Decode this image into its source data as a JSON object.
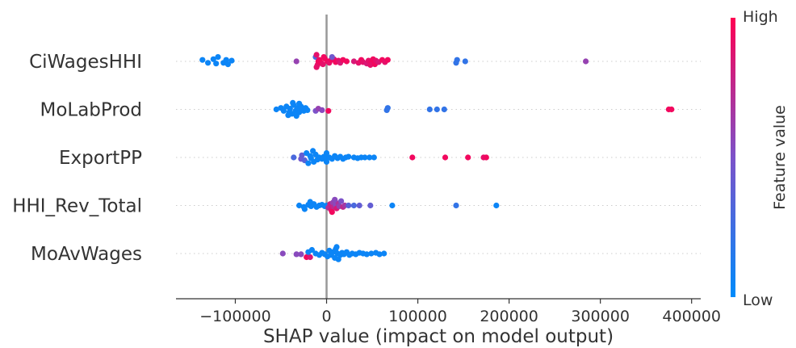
{
  "chart_data": {
    "type": "scatter",
    "subtype": "shap-beeswarm",
    "title": "",
    "xlabel": "SHAP value (impact on model output)",
    "ylabel": "",
    "xlim": [
      -165000,
      410000
    ],
    "xticks": [
      -100000,
      0,
      100000,
      200000,
      300000,
      400000
    ],
    "xtick_labels": [
      "−100000",
      "0",
      "100000",
      "200000",
      "300000",
      "400000"
    ],
    "zero_line": 0,
    "grid": false,
    "colorbar": {
      "label": "Feature value",
      "high_label": "High",
      "low_label": "Low",
      "low_color": "#008bfb",
      "high_color": "#ff0052"
    },
    "features": [
      {
        "name": "CiWagesHHI",
        "points": [
          {
            "x": -136000,
            "o": -0.1,
            "c": 0.05
          },
          {
            "x": -130000,
            "o": 0.1,
            "c": 0.05
          },
          {
            "x": -124000,
            "o": -0.15,
            "c": 0.05
          },
          {
            "x": -121000,
            "o": 0.15,
            "c": 0.05
          },
          {
            "x": -119000,
            "o": -0.3,
            "c": 0.05
          },
          {
            "x": -113000,
            "o": 0.1,
            "c": 0.05
          },
          {
            "x": -110000,
            "o": -0.1,
            "c": 0.05
          },
          {
            "x": -108000,
            "o": 0.2,
            "c": 0.05
          },
          {
            "x": -104000,
            "o": -0.05,
            "c": 0.05
          },
          {
            "x": -33000,
            "o": 0.0,
            "c": 0.6
          },
          {
            "x": -12000,
            "o": -0.3,
            "c": 0.3
          },
          {
            "x": -10000,
            "o": 0.25,
            "c": 0.9
          },
          {
            "x": -8000,
            "o": -0.1,
            "c": 0.95
          },
          {
            "x": -6000,
            "o": 0.1,
            "c": 0.95
          },
          {
            "x": -9000,
            "o": 0.0,
            "c": 0.95
          },
          {
            "x": -4000,
            "o": 0.2,
            "c": 0.9
          },
          {
            "x": -2000,
            "o": -0.2,
            "c": 0.95
          },
          {
            "x": -3000,
            "o": -0.3,
            "c": 0.95
          },
          {
            "x": -11000,
            "o": 0.4,
            "c": 0.9
          },
          {
            "x": -11000,
            "o": -0.45,
            "c": 0.9
          },
          {
            "x": 1000,
            "o": 0.0,
            "c": 0.95
          },
          {
            "x": 3000,
            "o": 0.1,
            "c": 0.9
          },
          {
            "x": 5000,
            "o": -0.1,
            "c": 0.95
          },
          {
            "x": 8000,
            "o": -0.15,
            "c": 0.9
          },
          {
            "x": 10000,
            "o": 0.05,
            "c": 0.95
          },
          {
            "x": 13000,
            "o": -0.05,
            "c": 0.9
          },
          {
            "x": 15000,
            "o": 0.1,
            "c": 0.85
          },
          {
            "x": 18000,
            "o": -0.1,
            "c": 0.95
          },
          {
            "x": 22000,
            "o": 0.0,
            "c": 0.95
          },
          {
            "x": 6000,
            "o": -0.3,
            "c": 0.45
          },
          {
            "x": 30000,
            "o": 0.0,
            "c": 0.85
          },
          {
            "x": 35000,
            "o": 0.1,
            "c": 0.9
          },
          {
            "x": 38000,
            "o": -0.1,
            "c": 0.95
          },
          {
            "x": 40000,
            "o": 0.05,
            "c": 0.9
          },
          {
            "x": 44000,
            "o": 0.15,
            "c": 0.85
          },
          {
            "x": 46000,
            "o": -0.05,
            "c": 0.9
          },
          {
            "x": 49000,
            "o": 0.1,
            "c": 0.95
          },
          {
            "x": 51000,
            "o": -0.15,
            "c": 0.95
          },
          {
            "x": 48000,
            "o": 0.25,
            "c": 0.9
          },
          {
            "x": 53000,
            "o": 0.2,
            "c": 0.95
          },
          {
            "x": 54000,
            "o": -0.05,
            "c": 0.9
          },
          {
            "x": 57000,
            "o": 0.05,
            "c": 0.85
          },
          {
            "x": 61000,
            "o": -0.1,
            "c": 0.95
          },
          {
            "x": 64000,
            "o": 0.05,
            "c": 0.9
          },
          {
            "x": 67000,
            "o": -0.1,
            "c": 0.95
          },
          {
            "x": 142000,
            "o": 0.1,
            "c": 0.2
          },
          {
            "x": 143000,
            "o": -0.1,
            "c": 0.2
          },
          {
            "x": 152000,
            "o": 0.0,
            "c": 0.2
          },
          {
            "x": 284000,
            "o": 0.0,
            "c": 0.6
          }
        ]
      },
      {
        "name": "MoLabProd",
        "points": [
          {
            "x": -55000,
            "o": 0.0,
            "c": 0.05
          },
          {
            "x": -50000,
            "o": -0.1,
            "c": 0.05
          },
          {
            "x": -47000,
            "o": 0.1,
            "c": 0.05
          },
          {
            "x": -44000,
            "o": -0.2,
            "c": 0.05
          },
          {
            "x": -41000,
            "o": 0.2,
            "c": 0.05
          },
          {
            "x": -40000,
            "o": -0.05,
            "c": 0.05
          },
          {
            "x": -38000,
            "o": 0.3,
            "c": 0.05
          },
          {
            "x": -36000,
            "o": -0.3,
            "c": 0.05
          },
          {
            "x": -34000,
            "o": 0.1,
            "c": 0.05
          },
          {
            "x": -32000,
            "o": -0.1,
            "c": 0.05
          },
          {
            "x": -30000,
            "o": 0.2,
            "c": 0.05
          },
          {
            "x": -28000,
            "o": -0.2,
            "c": 0.05
          },
          {
            "x": -27000,
            "o": 0.0,
            "c": 0.05
          },
          {
            "x": -25000,
            "o": 0.1,
            "c": 0.05
          },
          {
            "x": -23000,
            "o": -0.1,
            "c": 0.05
          },
          {
            "x": -21000,
            "o": 0.05,
            "c": 0.05
          },
          {
            "x": -42000,
            "o": 0.4,
            "c": 0.05
          },
          {
            "x": -37000,
            "o": -0.45,
            "c": 0.05
          },
          {
            "x": -33000,
            "o": 0.45,
            "c": 0.05
          },
          {
            "x": -30000,
            "o": -0.4,
            "c": 0.05
          },
          {
            "x": -12000,
            "o": 0.1,
            "c": 0.5
          },
          {
            "x": -9000,
            "o": -0.05,
            "c": 0.6
          },
          {
            "x": -5000,
            "o": 0.05,
            "c": 0.55
          },
          {
            "x": 2000,
            "o": 0.1,
            "c": 0.95
          },
          {
            "x": 66000,
            "o": 0.05,
            "c": 0.2
          },
          {
            "x": 67000,
            "o": -0.1,
            "c": 0.2
          },
          {
            "x": 113000,
            "o": 0.0,
            "c": 0.2
          },
          {
            "x": 121000,
            "o": 0.0,
            "c": 0.2
          },
          {
            "x": 129000,
            "o": 0.0,
            "c": 0.2
          },
          {
            "x": 375000,
            "o": 0.0,
            "c": 0.95
          },
          {
            "x": 378000,
            "o": 0.0,
            "c": 0.95
          }
        ]
      },
      {
        "name": "ExportPP",
        "points": [
          {
            "x": -36000,
            "o": 0.0,
            "c": 0.3
          },
          {
            "x": -28000,
            "o": 0.1,
            "c": 0.45
          },
          {
            "x": -27000,
            "o": -0.15,
            "c": 0.4
          },
          {
            "x": -24000,
            "o": 0.2,
            "c": 0.35
          },
          {
            "x": -22000,
            "o": -0.3,
            "c": 0.05
          },
          {
            "x": -20000,
            "o": 0.4,
            "c": 0.05
          },
          {
            "x": -18000,
            "o": -0.1,
            "c": 0.05
          },
          {
            "x": -17000,
            "o": 0.05,
            "c": 0.05
          },
          {
            "x": -15000,
            "o": -0.45,
            "c": 0.05
          },
          {
            "x": -14000,
            "o": 0.3,
            "c": 0.05
          },
          {
            "x": -12000,
            "o": -0.2,
            "c": 0.05
          },
          {
            "x": -10000,
            "o": 0.15,
            "c": 0.05
          },
          {
            "x": -8000,
            "o": 0.0,
            "c": 0.05
          },
          {
            "x": -5000,
            "o": 0.1,
            "c": 0.05
          },
          {
            "x": -3000,
            "o": -0.05,
            "c": 0.05
          },
          {
            "x": 0,
            "o": 0.05,
            "c": 0.05
          },
          {
            "x": 3000,
            "o": 0.0,
            "c": 0.05
          },
          {
            "x": 6000,
            "o": 0.1,
            "c": 0.05
          },
          {
            "x": 9000,
            "o": -0.1,
            "c": 0.05
          },
          {
            "x": 12000,
            "o": 0.05,
            "c": 0.05
          },
          {
            "x": 15000,
            "o": -0.05,
            "c": 0.05
          },
          {
            "x": 18000,
            "o": 0.1,
            "c": 0.05
          },
          {
            "x": 21000,
            "o": 0.0,
            "c": 0.05
          },
          {
            "x": 24000,
            "o": -0.05,
            "c": 0.05
          },
          {
            "x": 0,
            "o": -0.3,
            "c": 0.05
          },
          {
            "x": 0,
            "o": 0.3,
            "c": 0.05
          },
          {
            "x": 30000,
            "o": 0.0,
            "c": 0.05
          },
          {
            "x": 34000,
            "o": 0.05,
            "c": 0.05
          },
          {
            "x": 38000,
            "o": 0.0,
            "c": 0.05
          },
          {
            "x": 42000,
            "o": 0.0,
            "c": 0.05
          },
          {
            "x": 47000,
            "o": 0.0,
            "c": 0.05
          },
          {
            "x": 52000,
            "o": 0.0,
            "c": 0.05
          },
          {
            "x": 94000,
            "o": 0.0,
            "c": 0.95
          },
          {
            "x": 130000,
            "o": 0.0,
            "c": 0.95
          },
          {
            "x": 155000,
            "o": 0.0,
            "c": 0.95
          },
          {
            "x": 172000,
            "o": 0.0,
            "c": 0.9
          },
          {
            "x": 175000,
            "o": 0.0,
            "c": 0.95
          }
        ]
      },
      {
        "name": "HHI_Rev_Total",
        "points": [
          {
            "x": -30000,
            "o": 0.0,
            "c": 0.05
          },
          {
            "x": -25000,
            "o": 0.1,
            "c": 0.05
          },
          {
            "x": -20000,
            "o": -0.05,
            "c": 0.05
          },
          {
            "x": -17000,
            "o": 0.05,
            "c": 0.05
          },
          {
            "x": -14000,
            "o": -0.1,
            "c": 0.05
          },
          {
            "x": -11000,
            "o": 0.1,
            "c": 0.05
          },
          {
            "x": -8000,
            "o": 0.0,
            "c": 0.05
          },
          {
            "x": -5000,
            "o": -0.05,
            "c": 0.05
          },
          {
            "x": -2000,
            "o": 0.05,
            "c": 0.05
          },
          {
            "x": -24000,
            "o": 0.25,
            "c": 0.05
          },
          {
            "x": -18000,
            "o": -0.25,
            "c": 0.05
          },
          {
            "x": 0,
            "o": 0.0,
            "c": 0.05
          },
          {
            "x": 2000,
            "o": 0.15,
            "c": 0.7
          },
          {
            "x": 4000,
            "o": -0.1,
            "c": 0.8
          },
          {
            "x": 5000,
            "o": 0.3,
            "c": 0.85
          },
          {
            "x": 7000,
            "o": -0.2,
            "c": 0.6
          },
          {
            "x": 8000,
            "o": 0.1,
            "c": 0.75
          },
          {
            "x": 10000,
            "o": -0.05,
            "c": 0.55
          },
          {
            "x": 11000,
            "o": 0.2,
            "c": 0.85
          },
          {
            "x": 13000,
            "o": -0.15,
            "c": 0.7
          },
          {
            "x": 14000,
            "o": 0.05,
            "c": 0.6
          },
          {
            "x": 16000,
            "o": -0.3,
            "c": 0.5
          },
          {
            "x": 18000,
            "o": 0.1,
            "c": 0.75
          },
          {
            "x": 20000,
            "o": 0.0,
            "c": 0.65
          },
          {
            "x": 6000,
            "o": 0.45,
            "c": 0.95
          },
          {
            "x": 9000,
            "o": -0.4,
            "c": 0.55
          },
          {
            "x": 24000,
            "o": 0.0,
            "c": 0.35
          },
          {
            "x": 30000,
            "o": 0.0,
            "c": 0.3
          },
          {
            "x": 36000,
            "o": 0.0,
            "c": 0.4
          },
          {
            "x": 48000,
            "o": 0.0,
            "c": 0.4
          },
          {
            "x": 72000,
            "o": 0.0,
            "c": 0.05
          },
          {
            "x": 142000,
            "o": 0.0,
            "c": 0.2
          },
          {
            "x": 186000,
            "o": 0.0,
            "c": 0.05
          }
        ]
      },
      {
        "name": "MoAvWages",
        "points": [
          {
            "x": -48000,
            "o": 0.0,
            "c": 0.55
          },
          {
            "x": -33000,
            "o": 0.05,
            "c": 0.55
          },
          {
            "x": -28000,
            "o": 0.05,
            "c": 0.55
          },
          {
            "x": -22000,
            "o": 0.25,
            "c": 0.95
          },
          {
            "x": -18000,
            "o": 0.25,
            "c": 0.85
          },
          {
            "x": -20000,
            "o": -0.1,
            "c": 0.05
          },
          {
            "x": -16000,
            "o": -0.25,
            "c": 0.05
          },
          {
            "x": -12000,
            "o": 0.0,
            "c": 0.05
          },
          {
            "x": -8000,
            "o": 0.1,
            "c": 0.05
          },
          {
            "x": -5000,
            "o": -0.05,
            "c": 0.05
          },
          {
            "x": -2000,
            "o": 0.05,
            "c": 0.05
          },
          {
            "x": 1000,
            "o": 0.2,
            "c": 0.05
          },
          {
            "x": 3000,
            "o": -0.2,
            "c": 0.05
          },
          {
            "x": 5000,
            "o": 0.1,
            "c": 0.05
          },
          {
            "x": 7000,
            "o": -0.1,
            "c": 0.05
          },
          {
            "x": 9000,
            "o": 0.3,
            "c": 0.05
          },
          {
            "x": 10000,
            "o": -0.3,
            "c": 0.05
          },
          {
            "x": 12000,
            "o": 0.0,
            "c": 0.05
          },
          {
            "x": 13000,
            "o": 0.4,
            "c": 0.05
          },
          {
            "x": 11000,
            "o": -0.45,
            "c": 0.05
          },
          {
            "x": 15000,
            "o": 0.1,
            "c": 0.05
          },
          {
            "x": 17000,
            "o": -0.05,
            "c": 0.05
          },
          {
            "x": 19000,
            "o": 0.05,
            "c": 0.05
          },
          {
            "x": 22000,
            "o": -0.1,
            "c": 0.05
          },
          {
            "x": 25000,
            "o": 0.1,
            "c": 0.05
          },
          {
            "x": 28000,
            "o": 0.0,
            "c": 0.05
          },
          {
            "x": 32000,
            "o": 0.05,
            "c": 0.05
          },
          {
            "x": 36000,
            "o": -0.05,
            "c": 0.05
          },
          {
            "x": 40000,
            "o": 0.0,
            "c": 0.05
          },
          {
            "x": 44000,
            "o": 0.05,
            "c": 0.05
          },
          {
            "x": 49000,
            "o": 0.0,
            "c": 0.05
          },
          {
            "x": 54000,
            "o": -0.05,
            "c": 0.05
          },
          {
            "x": 58000,
            "o": 0.05,
            "c": 0.05
          },
          {
            "x": 63000,
            "o": 0.0,
            "c": 0.05
          }
        ]
      }
    ]
  }
}
